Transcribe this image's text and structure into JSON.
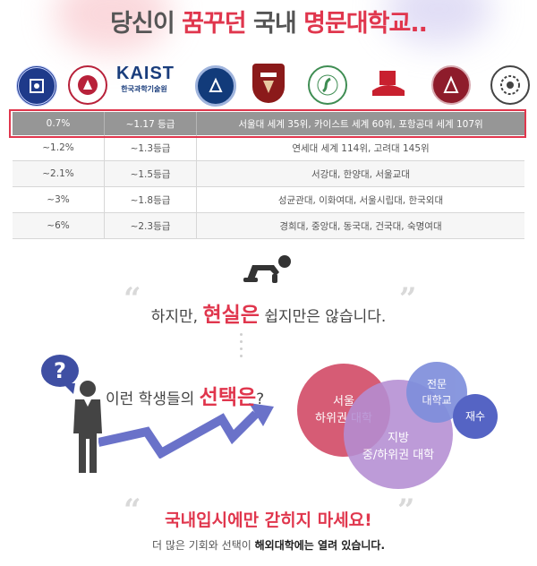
{
  "headline": {
    "part1": "당신이",
    "highlight1": "꿈꾸던",
    "part2": "국내",
    "highlight2": "명문대학교..",
    "highlight_color": "#e0364d"
  },
  "logos": {
    "kaist_name": "KAIST",
    "kaist_subtitle": "한국과학기술원"
  },
  "ranking_table": {
    "rows": [
      {
        "percent": "0.7%",
        "grade": "~1.17 등급",
        "schools": "서울대 세계 35위, 카이스트 세계 60위, 포항공대 세계 107위"
      },
      {
        "percent": "~1.2%",
        "grade": "~1.3등급",
        "schools": "연세대 세계 114위, 고려대 145위"
      },
      {
        "percent": "~2.1%",
        "grade": "~1.5등급",
        "schools": "서강대, 한양대, 서울교대"
      },
      {
        "percent": "~3%",
        "grade": "~1.8등급",
        "schools": "성균관대, 이화여대, 서울시립대, 한국외대"
      },
      {
        "percent": "~6%",
        "grade": "~2.3등급",
        "schools": "경희대, 중앙대, 동국대, 건국대, 숙명여대"
      }
    ]
  },
  "reality": {
    "part1": "하지만,",
    "highlight": "현실은",
    "part2": "쉽지만은 않습니다."
  },
  "question": {
    "part1": "이런 학생들의",
    "highlight": "선택은",
    "part2": "?",
    "bubble_mark": "?"
  },
  "bubbles": {
    "seoul": [
      "서울",
      "하위권 대학"
    ],
    "regional": [
      "지방",
      "중/하위권 대학"
    ],
    "junior": [
      "전문",
      "대학교"
    ],
    "retake": "재수"
  },
  "closing": {
    "headline": "국내입시에만 갇히지 마세요!",
    "sub_part1": "더 많은 기회와 선택이",
    "sub_bold": "해외대학에는 열려 있습니다."
  }
}
